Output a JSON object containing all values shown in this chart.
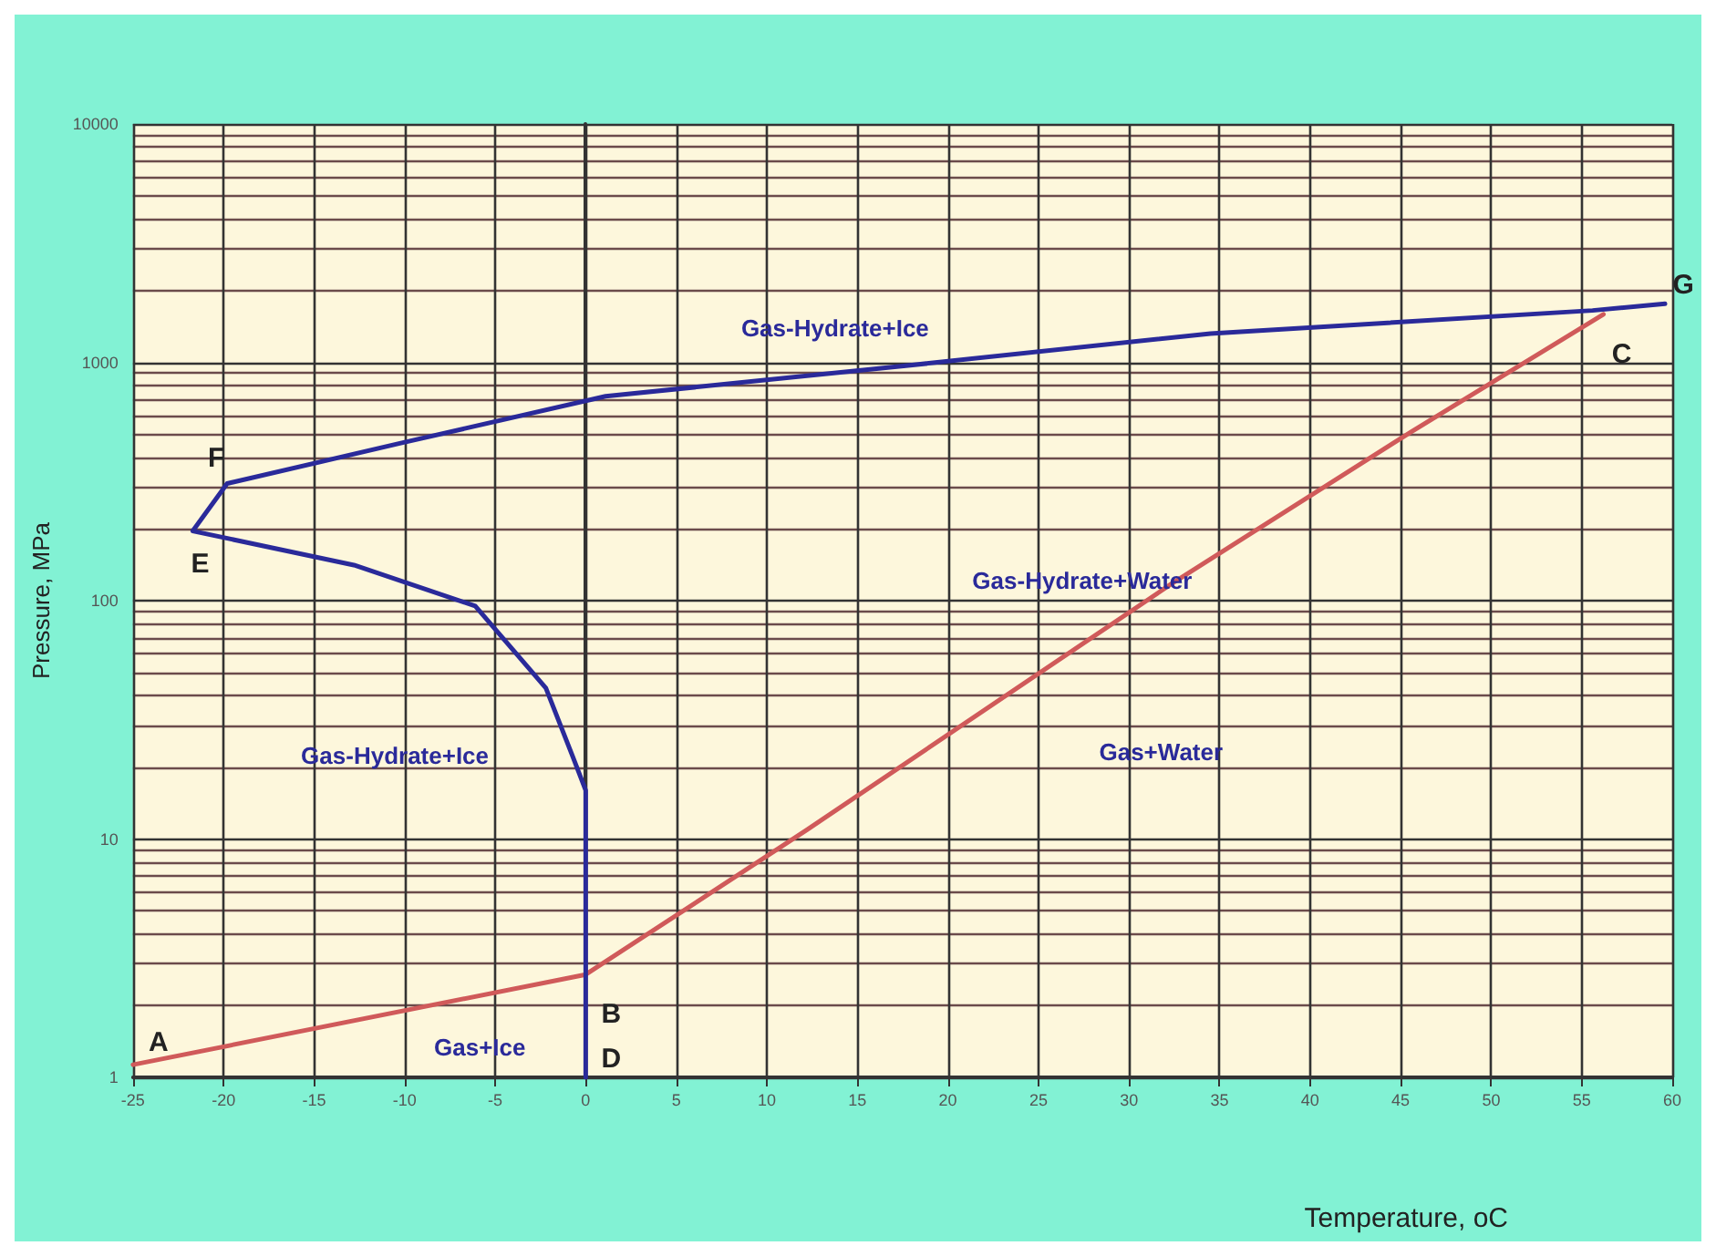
{
  "chart_data": {
    "type": "line",
    "xlabel": "Temperature, oC",
    "ylabel": "Pressure, MPa",
    "xlim": [
      -25,
      60
    ],
    "xticks": [
      -25,
      -20,
      -15,
      -10,
      -5,
      0,
      5,
      10,
      15,
      20,
      25,
      30,
      35,
      40,
      45,
      50,
      55,
      60
    ],
    "ylim": [
      1,
      10000
    ],
    "yticks": [
      1,
      10,
      100,
      1000,
      10000
    ],
    "log": "y",
    "grid": true,
    "marker": "none",
    "line_style": "solid",
    "series": [
      {
        "color": "#d05a5a",
        "x": [
          -25,
          0,
          12.2,
          32.3,
          45.6,
          56.2
        ],
        "values": [
          1.13,
          2.7,
          10.9,
          117,
          512,
          1590
        ]
      },
      {
        "color": "#2a2a9a",
        "x": [
          0,
          0,
          -0.7,
          -2.2,
          -6.1,
          -12.8,
          -21.7,
          -19.8,
          -10.1,
          1.1,
          17.8,
          34.5,
          55.6,
          59.6
        ],
        "values": [
          1,
          16,
          22,
          43,
          95,
          141,
          196,
          310,
          460,
          720,
          970,
          1320,
          1650,
          1760
        ]
      }
    ],
    "annotations": [
      {
        "text": "A",
        "x": -25,
        "y": 1.13
      },
      {
        "text": "B",
        "x": 0,
        "y": 2.7
      },
      {
        "text": "C",
        "x": 56.2,
        "y": 1590
      },
      {
        "text": "D",
        "x": 0,
        "y": 1
      },
      {
        "text": "E",
        "x": -21.7,
        "y": 196
      },
      {
        "text": "F",
        "x": -19.8,
        "y": 310
      },
      {
        "text": "G",
        "x": 59.6,
        "y": 1760
      },
      "Gas-Hydrate+Ice",
      "Gas-Hydrate+Water",
      "Gas-Hydrate+Ice",
      "Gas+Water",
      "Gas+Ice"
    ]
  }
}
